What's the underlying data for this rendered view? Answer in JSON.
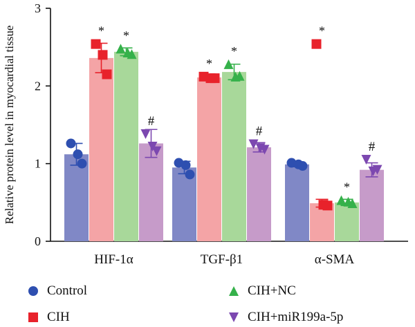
{
  "chart_data": {
    "type": "bar",
    "ylabel": "Relative protein level in myocardial tissue",
    "xlabel": "",
    "ylim": [
      0,
      3
    ],
    "yticks": [
      0,
      1,
      2,
      3
    ],
    "categories": [
      "HIF-1α",
      "TGF-β1",
      "α-SMA"
    ],
    "series": [
      {
        "name": "Control",
        "bar_color": "#8088c6",
        "marker_color": "#2e4fb0",
        "marker": "circle",
        "values": [
          1.12,
          0.95,
          0.99
        ],
        "errors": [
          0.14,
          0.08,
          0.03
        ],
        "points": [
          [
            1.26,
            1.12,
            1.0
          ],
          [
            1.01,
            0.98,
            0.86
          ],
          [
            1.01,
            0.99,
            0.97
          ]
        ],
        "annotations": [
          "",
          "",
          ""
        ]
      },
      {
        "name": "CIH",
        "bar_color": "#f4a4a6",
        "marker_color": "#e8222b",
        "marker": "square",
        "values": [
          2.36,
          2.11,
          0.49
        ],
        "errors": [
          0.19,
          0.03,
          0.05
        ],
        "points": [
          [
            2.54,
            2.4,
            2.15
          ],
          [
            2.12,
            2.1,
            2.1
          ],
          [
            2.54,
            0.47,
            0.46
          ]
        ],
        "annotations": [
          "*",
          "*",
          "*"
        ]
      },
      {
        "name": "CIH+NC",
        "bar_color": "#a8d89a",
        "marker_color": "#35b14a",
        "marker": "triangle-up",
        "values": [
          2.44,
          2.18,
          0.5
        ],
        "errors": [
          0.05,
          0.1,
          0.04
        ],
        "points": [
          [
            2.48,
            2.43,
            2.41
          ],
          [
            2.28,
            2.12,
            2.13
          ],
          [
            0.53,
            0.51,
            0.49
          ]
        ],
        "annotations": [
          "*",
          "*",
          "*"
        ]
      },
      {
        "name": "CIH+miR199a-5p",
        "bar_color": "#c69bc9",
        "marker_color": "#7c48b0",
        "marker": "triangle-down",
        "values": [
          1.26,
          1.21,
          0.92
        ],
        "errors": [
          0.18,
          0.06,
          0.09
        ],
        "points": [
          [
            1.38,
            1.22,
            1.16
          ],
          [
            1.25,
            1.2,
            1.18
          ],
          [
            1.05,
            0.9,
            0.92
          ]
        ],
        "annotations": [
          "#",
          "#",
          "#"
        ]
      }
    ],
    "legend": {
      "position": "bottom",
      "entries": [
        "Control",
        "CIH",
        "CIH+NC",
        "CIH+miR199a-5p"
      ]
    },
    "grid": false
  }
}
